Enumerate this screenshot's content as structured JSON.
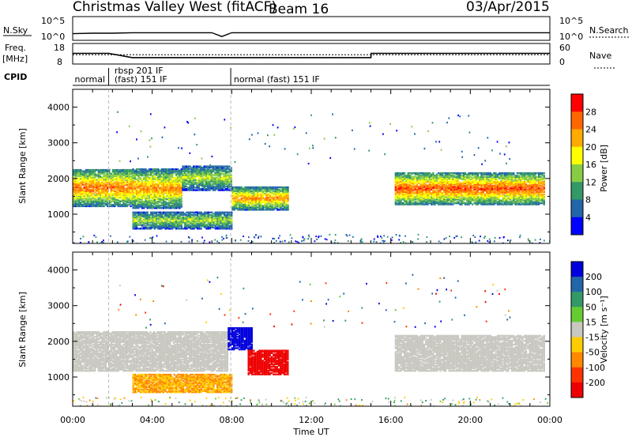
{
  "header": {
    "title": "Christmas Valley West (fitACF)",
    "beam": "Beam 16",
    "date": "03/Apr/2015"
  },
  "nsky_panel": {
    "label": "N.Sky",
    "left_ticks": [
      "10^5",
      "10^0"
    ],
    "right_ticks": [
      "10^5",
      "10^0"
    ],
    "right_label": "N.Search"
  },
  "freq_panel": {
    "label_line1": "Freq.",
    "label_line2": "[MHz]",
    "left_ticks": [
      "18",
      "8"
    ],
    "right_ticks": [
      "60",
      "0"
    ],
    "right_label": "Nave"
  },
  "cpid_panel": {
    "label": "CPID",
    "segments": [
      {
        "text": "normal",
        "x": 0.1
      },
      {
        "text": "rbsp 201 IF",
        "x": 2.1
      },
      {
        "text": "(fast) 151 IF",
        "x": 2.1
      },
      {
        "text": "normal (fast) 151 IF",
        "x": 8.1
      }
    ]
  },
  "power_panel": {
    "ylabel": "Slant Range [km]",
    "colorbar_label": "Power [dB]",
    "colorbar_ticks": [
      "28",
      "24",
      "20",
      "16",
      "12",
      "8",
      "4"
    ],
    "colorbar_colors": [
      "#ff0000",
      "#ff6600",
      "#ffaa00",
      "#ffff00",
      "#88cc44",
      "#339966",
      "#2266aa",
      "#0000ff"
    ]
  },
  "velocity_panel": {
    "ylabel": "Slant Range [km]",
    "colorbar_label": "Velocity [m s⁻¹]",
    "colorbar_ticks": [
      "200",
      "100",
      "50",
      "15",
      "-15",
      "-50",
      "-100",
      "-200"
    ],
    "colorbar_colors": [
      "#0000dd",
      "#2266aa",
      "#339966",
      "#66cc33",
      "#c8c8c0",
      "#ffcc00",
      "#ff8800",
      "#ff3300",
      "#ee0000"
    ]
  },
  "x_axis": {
    "label": "Time UT",
    "ticks": [
      "00:00",
      "04:00",
      "08:00",
      "12:00",
      "16:00",
      "20:00",
      "00:00"
    ]
  },
  "y_axis": {
    "ticks": [
      "1000",
      "2000",
      "3000",
      "4000"
    ]
  },
  "chart_data": [
    {
      "type": "line",
      "title": "N.Sky / N.Search",
      "x": [
        0,
        1,
        2,
        3,
        4,
        5,
        6,
        7,
        7.5,
        8,
        9,
        10,
        12,
        14,
        16,
        18,
        20,
        22,
        24
      ],
      "series": [
        {
          "name": "N.Sky",
          "values": [
            1.4,
            1.5,
            1.5,
            1.6,
            1.6,
            1.6,
            1.6,
            1.6,
            0.8,
            1.6,
            1.6,
            1.6,
            1.6,
            1.6,
            1.6,
            1.6,
            1.6,
            1.6,
            1.6
          ]
        }
      ],
      "ylim": [
        0,
        5
      ]
    },
    {
      "type": "line",
      "title": "Freq / Nave",
      "x": [
        0,
        1.8,
        1.81,
        3.0,
        3.01,
        15.0,
        15.01,
        24
      ],
      "series": [
        {
          "name": "Freq",
          "values": [
            13.2,
            13.2,
            13.2,
            11.1,
            11.1,
            11.1,
            13.2,
            13.2
          ]
        },
        {
          "name": "Nave",
          "values": [
            27,
            27,
            27,
            27,
            27,
            27,
            27,
            27
          ]
        }
      ],
      "ylim": [
        8,
        18
      ]
    },
    {
      "type": "heatmap",
      "title": "Power [dB]",
      "xlim": [
        0,
        24
      ],
      "ylim": [
        180,
        4500
      ],
      "bands": [
        {
          "t0": 0.0,
          "t1": 3.0,
          "r_lo": 1250,
          "r_hi": 2300,
          "peak": 26
        },
        {
          "t0": 3.0,
          "t1": 5.5,
          "r_lo": 1200,
          "r_hi": 2300,
          "peak": 24
        },
        {
          "t0": 5.5,
          "t1": 8.0,
          "r_lo": 1700,
          "r_hi": 2400,
          "peak": 16
        },
        {
          "t0": 8.0,
          "t1": 10.8,
          "r_lo": 1150,
          "r_hi": 1800,
          "peak": 24
        },
        {
          "t0": 3.0,
          "t1": 8.0,
          "r_lo": 620,
          "r_hi": 1100,
          "peak": 16
        },
        {
          "t0": 16.2,
          "t1": 23.7,
          "r_lo": 1300,
          "r_hi": 2200,
          "peak": 28
        }
      ]
    },
    {
      "type": "heatmap",
      "title": "Velocity [m s-1]",
      "xlim": [
        0,
        24
      ],
      "ylim": [
        180,
        4500
      ],
      "bands": [
        {
          "t0": 0.0,
          "t1": 7.8,
          "r_lo": 1200,
          "r_hi": 2300,
          "v": 0
        },
        {
          "t0": 3.0,
          "t1": 8.0,
          "r_lo": 600,
          "r_hi": 1100,
          "v": -50
        },
        {
          "t0": 7.8,
          "t1": 9.0,
          "r_lo": 1800,
          "r_hi": 2400,
          "v": 200
        },
        {
          "t0": 8.8,
          "t1": 10.8,
          "r_lo": 1100,
          "r_hi": 1800,
          "v": -200
        },
        {
          "t0": 16.2,
          "t1": 23.7,
          "r_lo": 1200,
          "r_hi": 2200,
          "v": 0
        }
      ]
    }
  ]
}
